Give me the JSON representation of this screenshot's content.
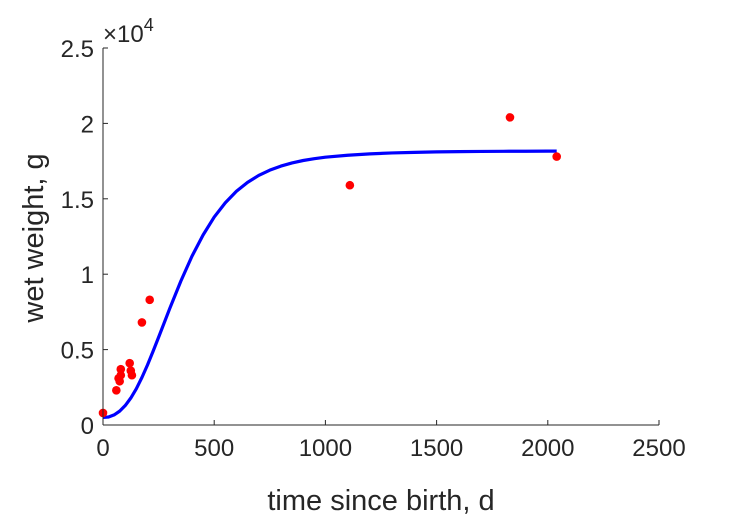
{
  "chart_data": {
    "type": "scatter",
    "xlabel": "time since birth, d",
    "ylabel": "wet weight, g",
    "xlim": [
      0,
      2500
    ],
    "ylim": [
      0,
      25000
    ],
    "x_ticks": [
      0,
      500,
      1000,
      1500,
      2000,
      2500
    ],
    "x_tick_labels": [
      "0",
      "500",
      "1000",
      "1500",
      "2000",
      "2500"
    ],
    "y_ticks": [
      0,
      5000,
      10000,
      15000,
      20000,
      25000
    ],
    "y_tick_labels": [
      "0",
      "0.5",
      "1",
      "1.5",
      "2",
      "2.5"
    ],
    "y_exponent_label": {
      "prefix": "×10",
      "power": "4"
    },
    "grid": false,
    "legend": "none",
    "series": [
      {
        "kind": "points",
        "color": "#ff0000",
        "x": [
          0,
          60,
          70,
          75,
          80,
          80,
          120,
          125,
          130,
          175,
          210,
          1110,
          1830,
          2040
        ],
        "y": [
          800,
          2300,
          3100,
          2900,
          3700,
          3300,
          4100,
          3600,
          3300,
          6800,
          8300,
          15900,
          20400,
          17800
        ]
      },
      {
        "kind": "line",
        "color": "#0000ff",
        "x": [
          0,
          25,
          50,
          75,
          100,
          125,
          150,
          175,
          200,
          225,
          250,
          275,
          300,
          350,
          400,
          450,
          500,
          550,
          600,
          650,
          700,
          750,
          800,
          850,
          900,
          950,
          1000,
          1100,
          1200,
          1300,
          1400,
          1500,
          1600,
          1700,
          1800,
          1900,
          2000,
          2040
        ],
        "y": [
          500,
          530,
          670,
          920,
          1290,
          1790,
          2410,
          3150,
          3980,
          4880,
          5820,
          6770,
          7720,
          9540,
          11190,
          12600,
          13790,
          14740,
          15500,
          16090,
          16550,
          16900,
          17170,
          17380,
          17540,
          17660,
          17760,
          17890,
          17980,
          18040,
          18080,
          18110,
          18130,
          18140,
          18150,
          18155,
          18160,
          18160
        ]
      }
    ]
  }
}
